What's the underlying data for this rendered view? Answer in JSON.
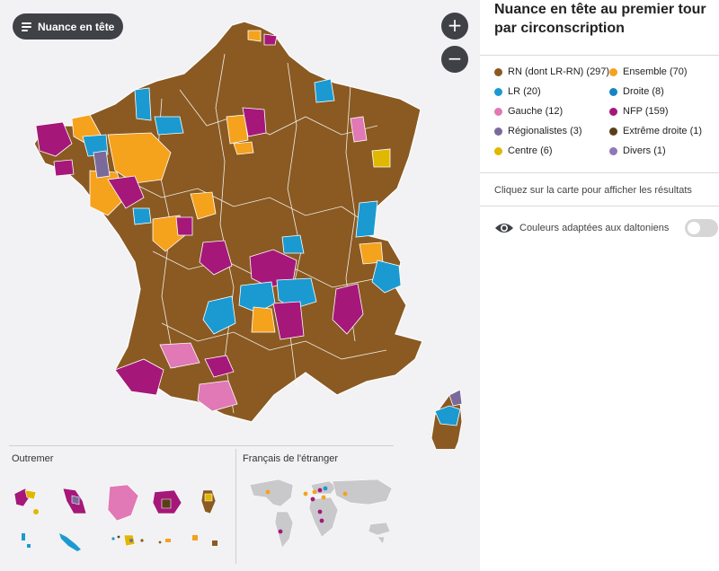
{
  "map_controls": {
    "nuance_button_label": "Nuance en tête",
    "zoom_in_label": "+",
    "zoom_out_label": "−"
  },
  "sections": {
    "outremer_label": "Outremer",
    "etranger_label": "Français de l'étranger"
  },
  "panel": {
    "title": "Nuance en tête au premier tour par circonscription",
    "instructions": "Cliquez sur la carte pour afficher les résultats",
    "colorblind_label": "Couleurs adaptées aux daltoniens",
    "colorblind_enabled": false
  },
  "colors": {
    "RN": "#8a5a22",
    "Ensemble": "#f5a21d",
    "LR": "#1a9ad1",
    "Droite": "#1583c4",
    "Gauche": "#e079b5",
    "NFP": "#a5187a",
    "Regionalistes": "#7a6a9c",
    "ExtremeDroite": "#5a3e1b",
    "Centre": "#e0b800",
    "Divers": "#8e78b8",
    "map_background": "#f2f2f4",
    "world_land": "#c9c9cc",
    "borders": "#ffffff"
  },
  "legend": [
    {
      "label": "RN (dont LR-RN) (297)",
      "color": "#8a5a22"
    },
    {
      "label": "Ensemble (70)",
      "color": "#f5a21d"
    },
    {
      "label": "LR (20)",
      "color": "#1a9ad1"
    },
    {
      "label": "Droite (8)",
      "color": "#1583c4"
    },
    {
      "label": "Gauche (12)",
      "color": "#e079b5"
    },
    {
      "label": "NFP (159)",
      "color": "#a5187a"
    },
    {
      "label": "Régionalistes (3)",
      "color": "#7a6a9c"
    },
    {
      "label": "Extrême droite (1)",
      "color": "#5a3e1b"
    },
    {
      "label": "Centre (6)",
      "color": "#e0b800"
    },
    {
      "label": "Divers (1)",
      "color": "#8e78b8"
    }
  ],
  "icons": {
    "menu": "menu-icon",
    "eye": "eye-icon",
    "zoom_in": "plus-icon",
    "zoom_out": "minus-icon"
  }
}
